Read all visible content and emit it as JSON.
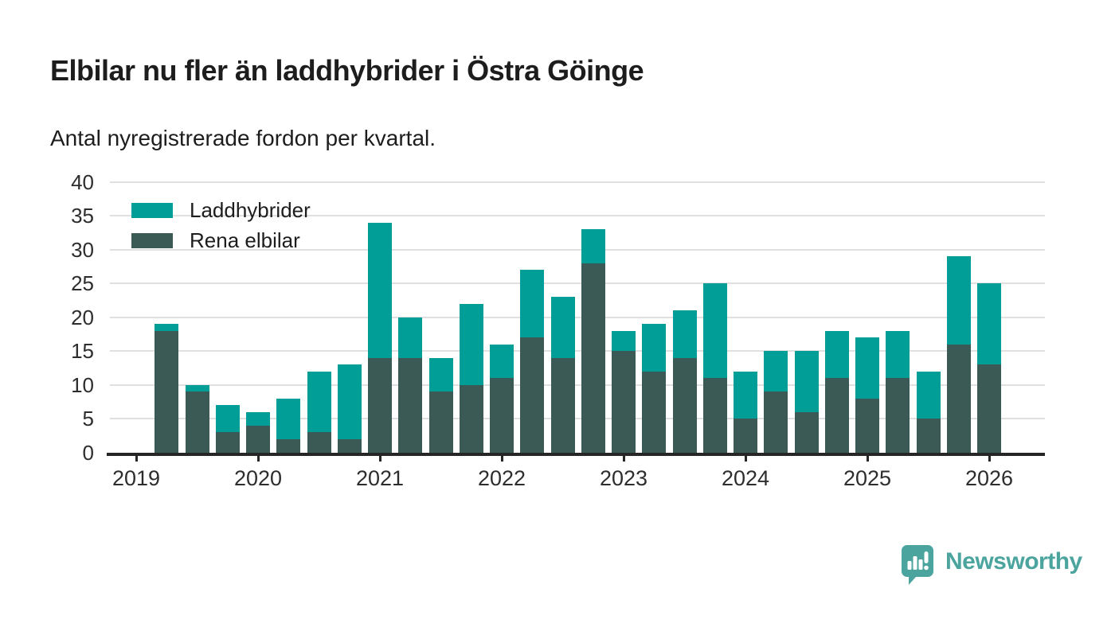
{
  "header": {
    "title": "Elbilar nu fler än laddhybrider i Östra Göinge",
    "subtitle": "Antal nyregistrerade fordon per kvartal."
  },
  "chart_data": {
    "type": "bar",
    "stacked": true,
    "title": "Elbilar nu fler än laddhybrider i Östra Göinge",
    "subtitle": "Antal nyregistrerade fordon per kvartal.",
    "xlabel": "",
    "ylabel": "",
    "ylim": [
      0,
      40
    ],
    "yticks": [
      0,
      5,
      10,
      15,
      20,
      25,
      30,
      35,
      40
    ],
    "grid": true,
    "legend_position": "top-left",
    "x_year_labels": [
      "2019",
      "2020",
      "2021",
      "2022",
      "2023",
      "2024",
      "2025",
      "2026"
    ],
    "categories": [
      "2019 Q2",
      "2019 Q3",
      "2019 Q4",
      "2020 Q1",
      "2020 Q2",
      "2020 Q3",
      "2020 Q4",
      "2021 Q1",
      "2021 Q2",
      "2021 Q3",
      "2021 Q4",
      "2022 Q1",
      "2022 Q2",
      "2022 Q3",
      "2022 Q4",
      "2023 Q1",
      "2023 Q2",
      "2023 Q3",
      "2023 Q4",
      "2024 Q1",
      "2024 Q2",
      "2024 Q3",
      "2024 Q4",
      "2025 Q1",
      "2025 Q2",
      "2025 Q3",
      "2025 Q4",
      "2026 Q1"
    ],
    "series": [
      {
        "name": "Laddhybrider",
        "color": "#009e97",
        "stack_position": "top",
        "values": [
          1,
          1,
          4,
          2,
          6,
          9,
          11,
          20,
          6,
          5,
          12,
          5,
          10,
          9,
          5,
          3,
          7,
          7,
          14,
          7,
          6,
          9,
          7,
          9,
          7,
          7,
          13,
          12
        ]
      },
      {
        "name": "Rena elbilar",
        "color": "#3c5a55",
        "stack_position": "bottom",
        "values": [
          18,
          9,
          3,
          4,
          2,
          3,
          2,
          14,
          14,
          9,
          10,
          11,
          17,
          14,
          28,
          15,
          12,
          14,
          11,
          5,
          9,
          6,
          11,
          8,
          11,
          5,
          16,
          13
        ]
      }
    ],
    "totals": [
      19,
      10,
      7,
      6,
      8,
      12,
      13,
      34,
      20,
      14,
      22,
      16,
      27,
      23,
      33,
      18,
      19,
      21,
      25,
      12,
      15,
      15,
      18,
      17,
      18,
      12,
      29,
      25
    ]
  },
  "colors": {
    "laddhybrider": "#009e97",
    "rena_elbilar": "#3c5a55",
    "gridline": "#e0e0e0",
    "axis": "#262626",
    "text": "#1d1d1d",
    "logo": "#4ba49d"
  },
  "logo": {
    "text": "Newsworthy",
    "icon": "newsworthy-speech-bubble-barchart-icon"
  }
}
